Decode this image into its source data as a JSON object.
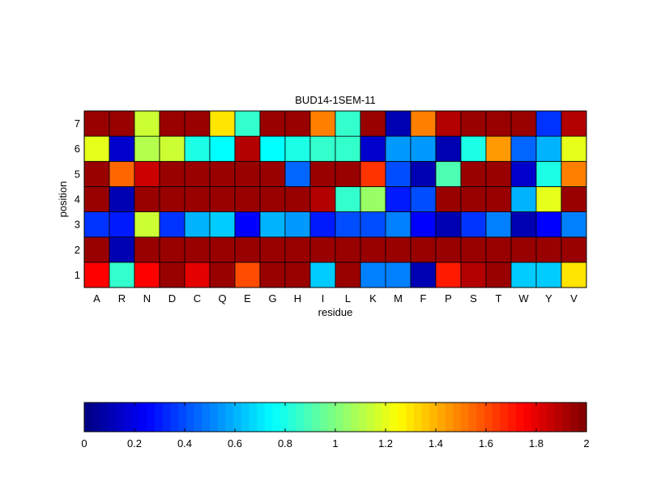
{
  "chart_data": {
    "type": "heatmap",
    "title": "BUD14-1SEM-11",
    "xlabel": "residue",
    "ylabel": "position",
    "x_categories": [
      "A",
      "R",
      "N",
      "D",
      "C",
      "Q",
      "E",
      "G",
      "H",
      "I",
      "L",
      "K",
      "M",
      "F",
      "P",
      "S",
      "T",
      "W",
      "Y",
      "V"
    ],
    "y_categories": [
      "1",
      "2",
      "3",
      "4",
      "5",
      "6",
      "7"
    ],
    "colormap": "jet",
    "clim": [
      0,
      2
    ],
    "colorbar": {
      "placement": "bottom",
      "ticks": [
        0,
        0.2,
        0.4,
        0.6,
        0.8,
        1,
        1.2,
        1.4,
        1.6,
        1.8,
        2
      ],
      "tick_labels": [
        "0",
        "0.2",
        "0.4",
        "0.6",
        "0.8",
        "1",
        "1.2",
        "1.4",
        "1.6",
        "1.8",
        "2"
      ]
    },
    "values": [
      [
        1.75,
        0.85,
        1.75,
        1.95,
        1.8,
        1.95,
        1.6,
        1.95,
        1.95,
        0.65,
        1.95,
        0.5,
        0.5,
        0.1,
        1.7,
        1.9,
        1.95,
        0.65,
        0.65,
        1.3
      ],
      [
        1.95,
        0.1,
        1.95,
        1.95,
        1.95,
        1.95,
        1.95,
        1.95,
        1.95,
        1.95,
        1.95,
        1.95,
        1.95,
        1.95,
        1.95,
        1.95,
        1.95,
        1.95,
        1.95,
        1.95
      ],
      [
        0.35,
        0.3,
        1.15,
        0.35,
        0.6,
        0.65,
        0.25,
        0.6,
        0.55,
        0.3,
        0.4,
        0.4,
        0.5,
        0.25,
        0.1,
        0.35,
        0.5,
        0.1,
        0.25,
        0.5
      ],
      [
        1.95,
        0.1,
        1.95,
        1.95,
        1.95,
        1.95,
        1.95,
        1.95,
        1.95,
        1.9,
        0.85,
        1.05,
        0.3,
        0.4,
        1.95,
        1.95,
        1.95,
        0.6,
        1.2,
        1.95
      ],
      [
        1.95,
        1.55,
        1.85,
        1.95,
        1.95,
        1.95,
        1.95,
        1.95,
        0.45,
        1.95,
        1.95,
        1.65,
        0.4,
        0.1,
        0.9,
        1.95,
        1.95,
        0.15,
        0.8,
        1.5
      ],
      [
        1.2,
        0.15,
        1.1,
        1.15,
        0.8,
        0.75,
        1.9,
        0.75,
        0.8,
        0.85,
        0.85,
        0.15,
        0.55,
        0.55,
        0.1,
        0.8,
        1.45,
        0.45,
        0.6,
        1.2
      ],
      [
        1.95,
        1.95,
        1.15,
        1.95,
        1.95,
        1.3,
        0.85,
        1.95,
        1.95,
        1.5,
        0.85,
        1.95,
        0.1,
        1.5,
        1.9,
        1.95,
        1.95,
        1.95,
        0.35,
        1.9
      ]
    ]
  }
}
